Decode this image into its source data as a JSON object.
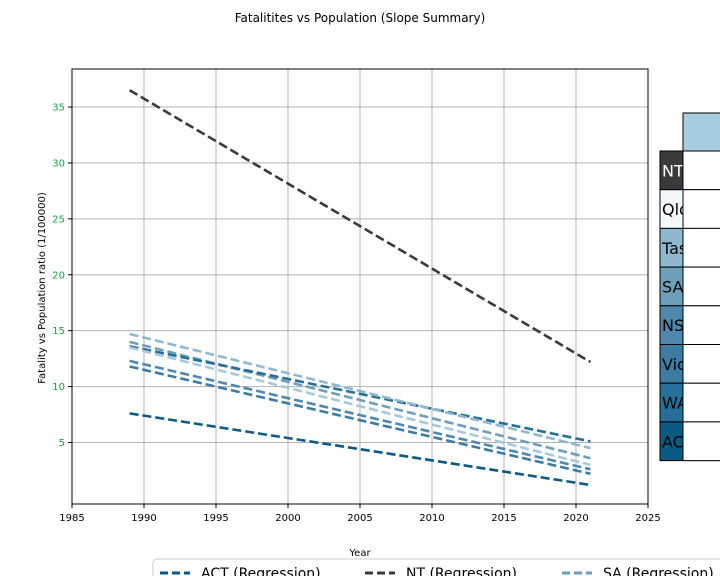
{
  "chart_data": {
    "type": "line",
    "title": "Fatalitites vs Population (Slope Summary)",
    "xlabel": "Year",
    "ylabel": "Fatality vs Population ratio (1/100000)",
    "xlim": [
      1985,
      2025
    ],
    "ylim": [
      -0.5,
      38.4
    ],
    "xticks": [
      1985,
      1990,
      1995,
      2000,
      2005,
      2010,
      2015,
      2020,
      2025
    ],
    "yticks": [
      5,
      10,
      15,
      20,
      25,
      30,
      35
    ],
    "grid": true,
    "x": [
      1989,
      2021
    ],
    "series": [
      {
        "name": "ACT (Regression)",
        "values": [
          7.6,
          1.2
        ],
        "color": "#0b5a84"
      },
      {
        "name": "NT (Regression)",
        "values": [
          36.5,
          12.2
        ],
        "color": "#3a3a3a"
      },
      {
        "name": "SA (Regression)",
        "values": [
          14.0,
          3.6
        ],
        "color": "#6e9fba"
      },
      {
        "name": "WA",
        "values": [
          13.6,
          5.1
        ],
        "color": "#256f99"
      },
      {
        "name": "Vic",
        "values": [
          11.8,
          2.2
        ],
        "color": "#3d7ba3"
      },
      {
        "name": "NSW",
        "values": [
          12.3,
          2.6
        ],
        "color": "#4f87ad"
      },
      {
        "name": "Tas",
        "values": [
          14.7,
          4.5
        ],
        "color": "#8fb8ce"
      },
      {
        "name": "Qld",
        "values": [
          13.5,
          3.0
        ],
        "color": "#a7c8db"
      }
    ],
    "legend": {
      "position": "bottom",
      "items": [
        "ACT (Regression)",
        "NT (Regression)",
        "SA (Regression)"
      ]
    },
    "table": {
      "position": "right",
      "header_color": "#a9cde0",
      "rows": [
        {
          "label": "NT",
          "color": "#3a3a3a",
          "text_color": "#ffffff"
        },
        {
          "label": "Qld",
          "color": "#f3f8fb",
          "text_color": "#000000"
        },
        {
          "label": "Tas",
          "color": "#8fb8ce",
          "text_color": "#000000"
        },
        {
          "label": "SA",
          "color": "#6e9fba",
          "text_color": "#000000"
        },
        {
          "label": "NSW",
          "color": "#4f87ad",
          "text_color": "#000000"
        },
        {
          "label": "Vic",
          "color": "#3d7ba3",
          "text_color": "#000000"
        },
        {
          "label": "WA",
          "color": "#256f99",
          "text_color": "#000000"
        },
        {
          "label": "ACT",
          "color": "#0b5a84",
          "text_color": "#000000"
        }
      ]
    },
    "colors": {
      "ytick_label": "#1aa34a",
      "grid": "#b0b0b0"
    }
  }
}
